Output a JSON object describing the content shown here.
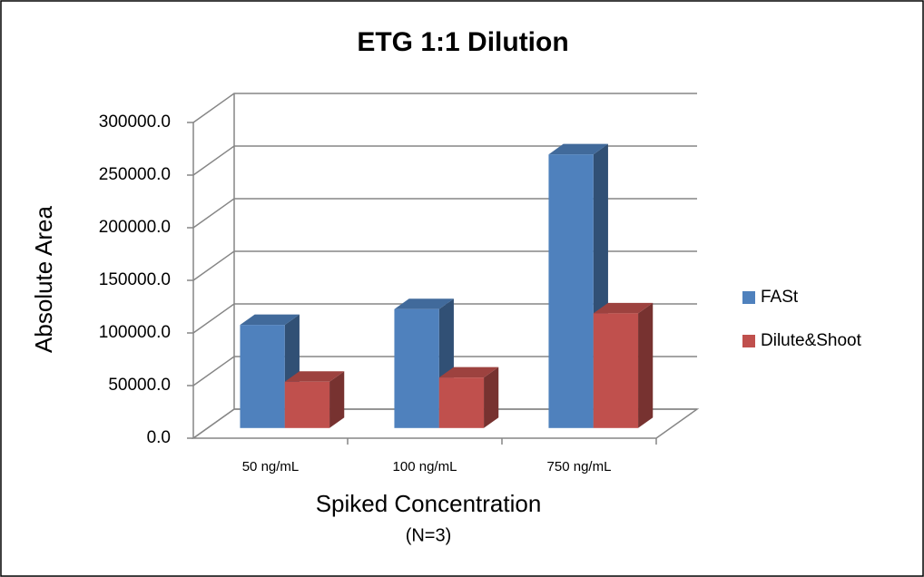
{
  "chart_data": {
    "type": "bar3d",
    "title": "ETG 1:1 Dilution",
    "x_label": "Spiked Concentration",
    "x_sublabel": "(N=3)",
    "y_label": "Absolute Area",
    "categories": [
      "50 ng/mL",
      "100 ng/mL",
      "750 ng/mL"
    ],
    "series": [
      {
        "name": "FASt",
        "color": "#4f81bd",
        "values": [
          98000,
          113000,
          260000
        ]
      },
      {
        "name": "Dilute&Shoot",
        "color": "#c0504d",
        "values": [
          44000,
          48000,
          109000
        ]
      }
    ],
    "ylim": [
      0,
      300000
    ],
    "yticks": [
      {
        "value": 0,
        "label": "0.0"
      },
      {
        "value": 50000,
        "label": "50000.0"
      },
      {
        "value": 100000,
        "label": "100000.0"
      },
      {
        "value": 150000,
        "label": "150000.0"
      },
      {
        "value": 200000,
        "label": "200000.0"
      },
      {
        "value": 250000,
        "label": "250000.0"
      },
      {
        "value": 300000,
        "label": "300000.0"
      }
    ],
    "grid": true,
    "legend": "right"
  }
}
